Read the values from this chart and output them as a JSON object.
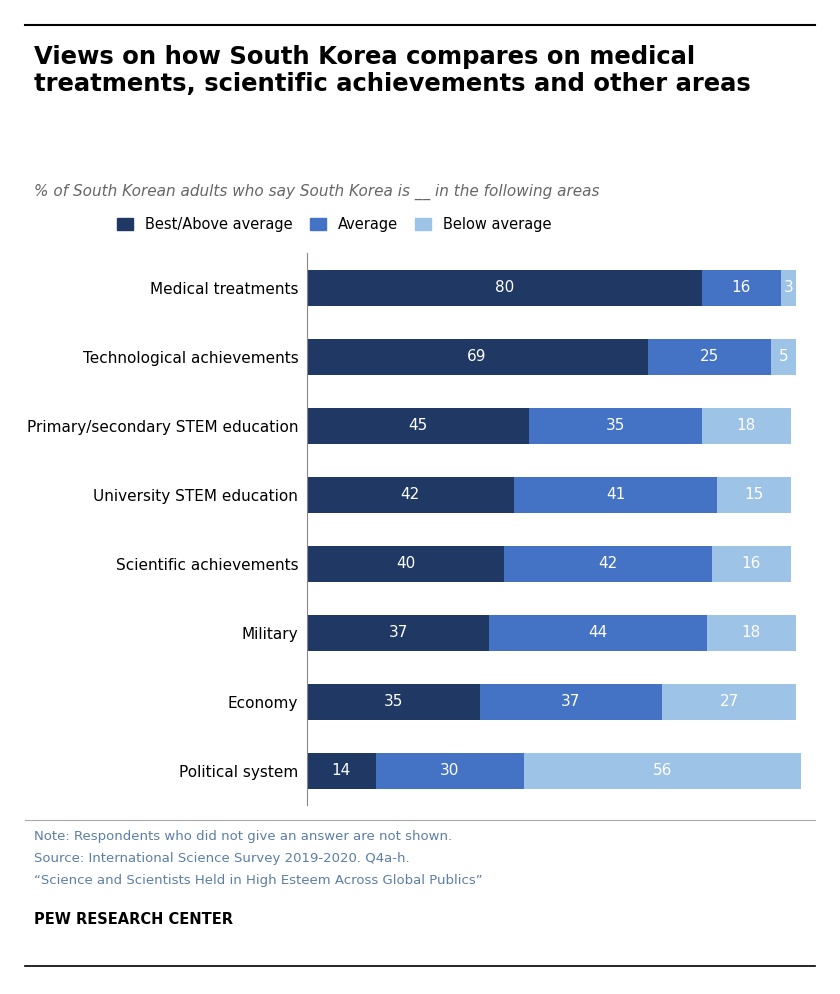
{
  "title": "Views on how South Korea compares on medical\ntreatments, scientific achievements and other areas",
  "subtitle": "% of South Korean adults who say South Korea is __ in the following areas",
  "categories": [
    "Medical treatments",
    "Technological achievements",
    "Primary/secondary STEM education",
    "University STEM education",
    "Scientific achievements",
    "Military",
    "Economy",
    "Political system"
  ],
  "best_above": [
    80,
    69,
    45,
    42,
    40,
    37,
    35,
    14
  ],
  "average": [
    16,
    25,
    35,
    41,
    42,
    44,
    37,
    30
  ],
  "below": [
    3,
    5,
    18,
    15,
    16,
    18,
    27,
    56
  ],
  "color_best": "#1f3864",
  "color_avg": "#4472c4",
  "color_below": "#9dc3e6",
  "legend_labels": [
    "Best/Above average",
    "Average",
    "Below average"
  ],
  "note1": "Note: Respondents who did not give an answer are not shown.",
  "note2": "Source: International Science Survey 2019-2020. Q4a-h.",
  "note3": "“Science and Scientists Held in High Esteem Across Global Publics”",
  "source_bold": "PEW RESEARCH CENTER",
  "bg_color": "#ffffff",
  "bar_height": 0.52,
  "label_fontsize": 11,
  "cat_fontsize": 11
}
